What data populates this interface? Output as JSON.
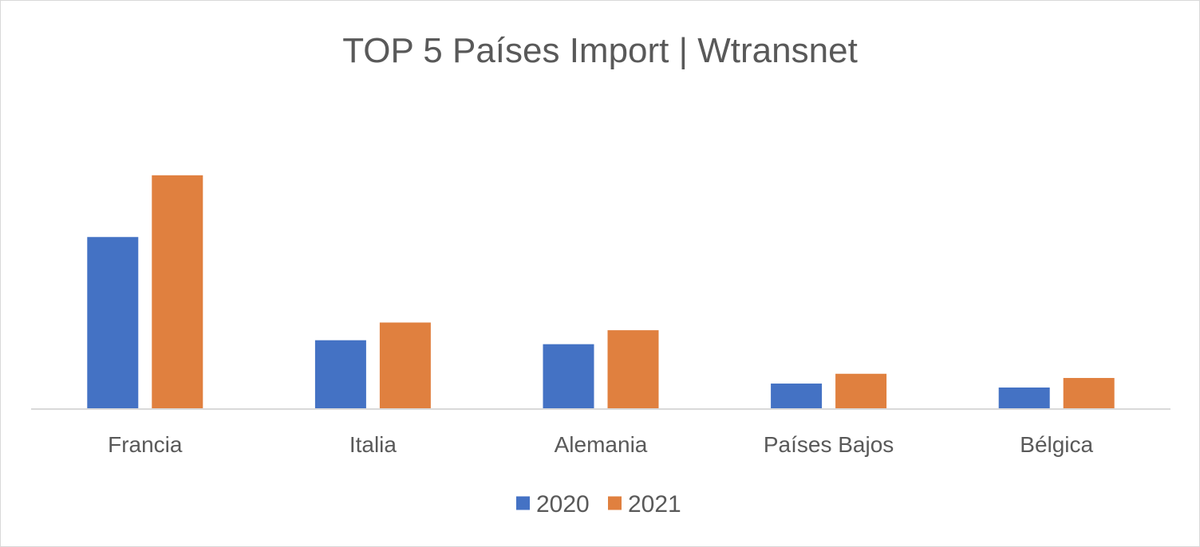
{
  "chart_data": {
    "type": "bar",
    "title": "TOP 5 Países Import | Wtransnet",
    "xlabel": "",
    "ylabel": "",
    "categories": [
      "Francia",
      "Italia",
      "Alemania",
      "Países Bajos",
      "Bélgica"
    ],
    "series": [
      {
        "name": "2020",
        "values": [
          73.5,
          29.2,
          27.5,
          10.6,
          8.9
        ],
        "color": "#4472C4"
      },
      {
        "name": "2021",
        "values": [
          100,
          36.8,
          33.5,
          14.8,
          13.0
        ],
        "color": "#E0803F"
      }
    ],
    "ylim": [
      0,
      115
    ],
    "grid": false,
    "legend_position": "bottom"
  }
}
